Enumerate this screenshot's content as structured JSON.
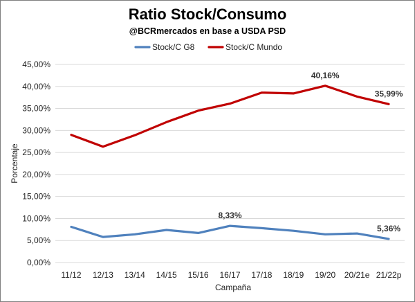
{
  "chart_data": {
    "type": "line",
    "title": "Ratio Stock/Consumo",
    "subtitle": "@BCRmercados en base a USDA PSD",
    "xlabel": "Campaña",
    "ylabel": "Porcentaje",
    "categories": [
      "11/12",
      "12/13",
      "13/14",
      "14/15",
      "15/16",
      "16/17",
      "17/18",
      "18/19",
      "19/20",
      "20/21e",
      "21/22p"
    ],
    "ylim": [
      0,
      45
    ],
    "yticks": [
      "0,00%",
      "5,00%",
      "10,00%",
      "15,00%",
      "20,00%",
      "25,00%",
      "30,00%",
      "35,00%",
      "40,00%",
      "45,00%"
    ],
    "grid": true,
    "legend_position": "top",
    "series": [
      {
        "name": "Stock/C G8",
        "color": "#4f81bd",
        "values": [
          8.1,
          5.8,
          6.4,
          7.4,
          6.7,
          8.33,
          7.8,
          7.2,
          6.4,
          6.6,
          5.36
        ]
      },
      {
        "name": "Stock/C Mundo",
        "color": "#c00000",
        "values": [
          29.0,
          26.3,
          28.9,
          31.9,
          34.5,
          36.1,
          38.6,
          38.4,
          40.16,
          37.7,
          35.99
        ]
      }
    ],
    "annotations": [
      {
        "series": 1,
        "index": 8,
        "text": "40,16%"
      },
      {
        "series": 1,
        "index": 10,
        "text": "35,99%"
      },
      {
        "series": 0,
        "index": 5,
        "text": "8,33%"
      },
      {
        "series": 0,
        "index": 10,
        "text": "5,36%"
      }
    ]
  }
}
